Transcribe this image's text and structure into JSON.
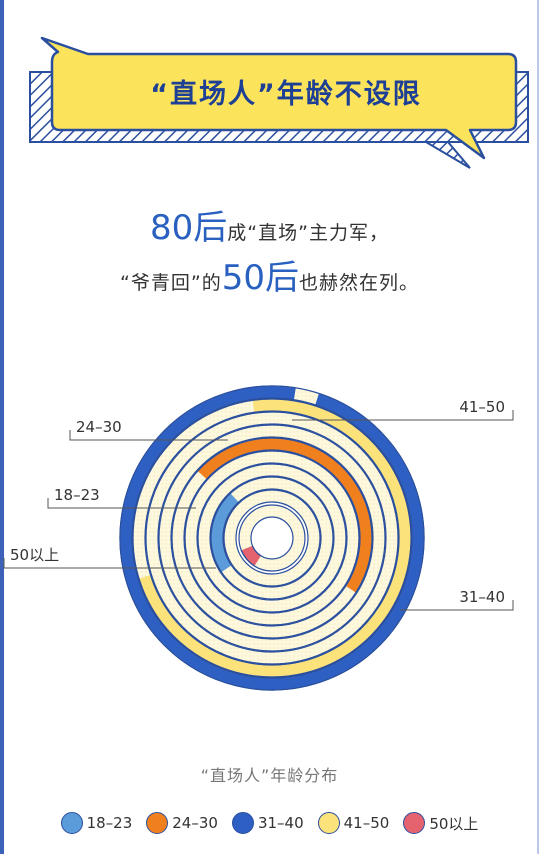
{
  "banner": {
    "title": "“直场人”年龄不设限"
  },
  "headline": {
    "line1_big": "80后",
    "line1_text": "成“直场”主力军，",
    "line2_pre": "“爷青回”的",
    "line2_big": "50后",
    "line2_text": "也赫然在列。"
  },
  "colors": {
    "18-23": "#5b9bd9",
    "24-30": "#f07f1e",
    "31-40": "#2e5fc2",
    "41-50": "#fbe27b",
    "50plus": "#e4636f",
    "track": "#fdf7dc",
    "ring_line": "#2a4f9e"
  },
  "chart_data": {
    "type": "radial_bar",
    "title": "“直场人”年龄分布",
    "categories": [
      "50以上",
      "18–23",
      "24–30",
      "41–50",
      "31–40"
    ],
    "series": [
      {
        "name": "50以上",
        "value": 4,
        "color": "#e4636f"
      },
      {
        "name": "18–23",
        "value": 9,
        "color": "#5b9bd9"
      },
      {
        "name": "24–30",
        "value": 19,
        "color": "#f07f1e"
      },
      {
        "name": "41–50",
        "value": 29,
        "color": "#fbe27b"
      },
      {
        "name": "31–40",
        "value": 39,
        "color": "#2e5fc2"
      }
    ],
    "legend": [
      {
        "label": "18–23",
        "color": "#5b9bd9"
      },
      {
        "label": "24–30",
        "color": "#f07f1e"
      },
      {
        "label": "31–40",
        "color": "#2e5fc2"
      },
      {
        "label": "41–50",
        "color": "#fbe27b"
      },
      {
        "label": "50以上",
        "color": "#e4636f"
      }
    ]
  }
}
